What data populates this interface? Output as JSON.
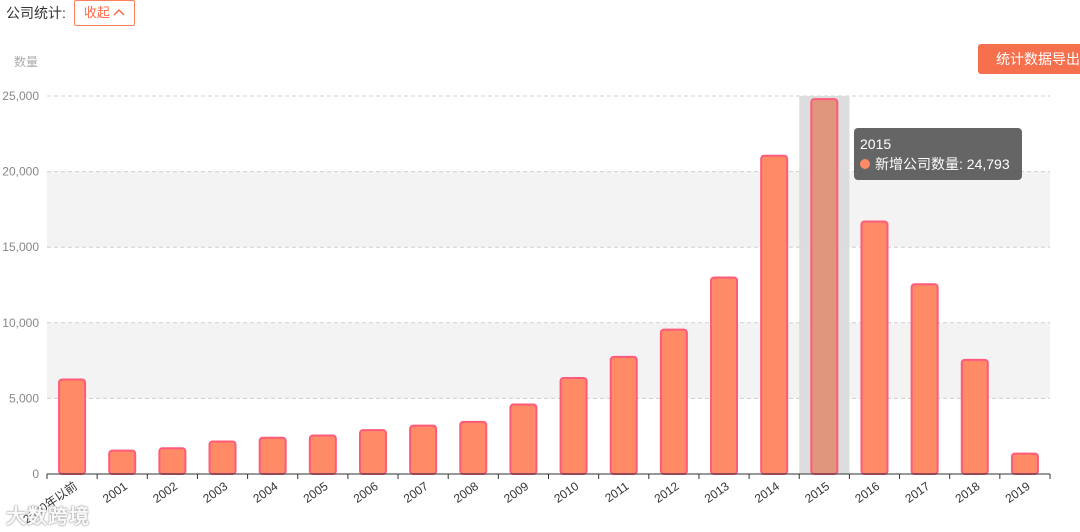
{
  "header": {
    "label": "公司统计:",
    "collapse_label": "收起",
    "collapse_icon": "chevron-up-icon"
  },
  "export_button": "统计数据导出",
  "tooltip": {
    "title": "2015",
    "series_label": "新增公司数量:",
    "value": "24,793"
  },
  "watermark": "大数跨境",
  "colors": {
    "bar_fill": "#ff8a66",
    "bar_stroke": "#ff5a7a",
    "highlight_band": "#d9d9d9",
    "accent": "#f6704d"
  },
  "chart_data": {
    "type": "bar",
    "ylabel": "数量",
    "xlabel": "",
    "ylim": [
      0,
      25000
    ],
    "yticks": [
      0,
      5000,
      10000,
      15000,
      20000,
      25000
    ],
    "ytick_labels": [
      "0",
      "5,000",
      "10,000",
      "15,000",
      "20,000",
      "25,000"
    ],
    "grid": true,
    "categories": [
      "2000年以前",
      "2001",
      "2002",
      "2003",
      "2004",
      "2005",
      "2006",
      "2007",
      "2008",
      "2009",
      "2010",
      "2011",
      "2012",
      "2013",
      "2014",
      "2015",
      "2016",
      "2017",
      "2018",
      "2019"
    ],
    "series": [
      {
        "name": "新增公司数量",
        "values": [
          6250,
          1550,
          1700,
          2150,
          2400,
          2550,
          2900,
          3200,
          3450,
          4600,
          6350,
          7750,
          9550,
          13000,
          21050,
          24793,
          16700,
          12550,
          7550,
          1350
        ]
      }
    ],
    "highlighted_category": "2015"
  }
}
